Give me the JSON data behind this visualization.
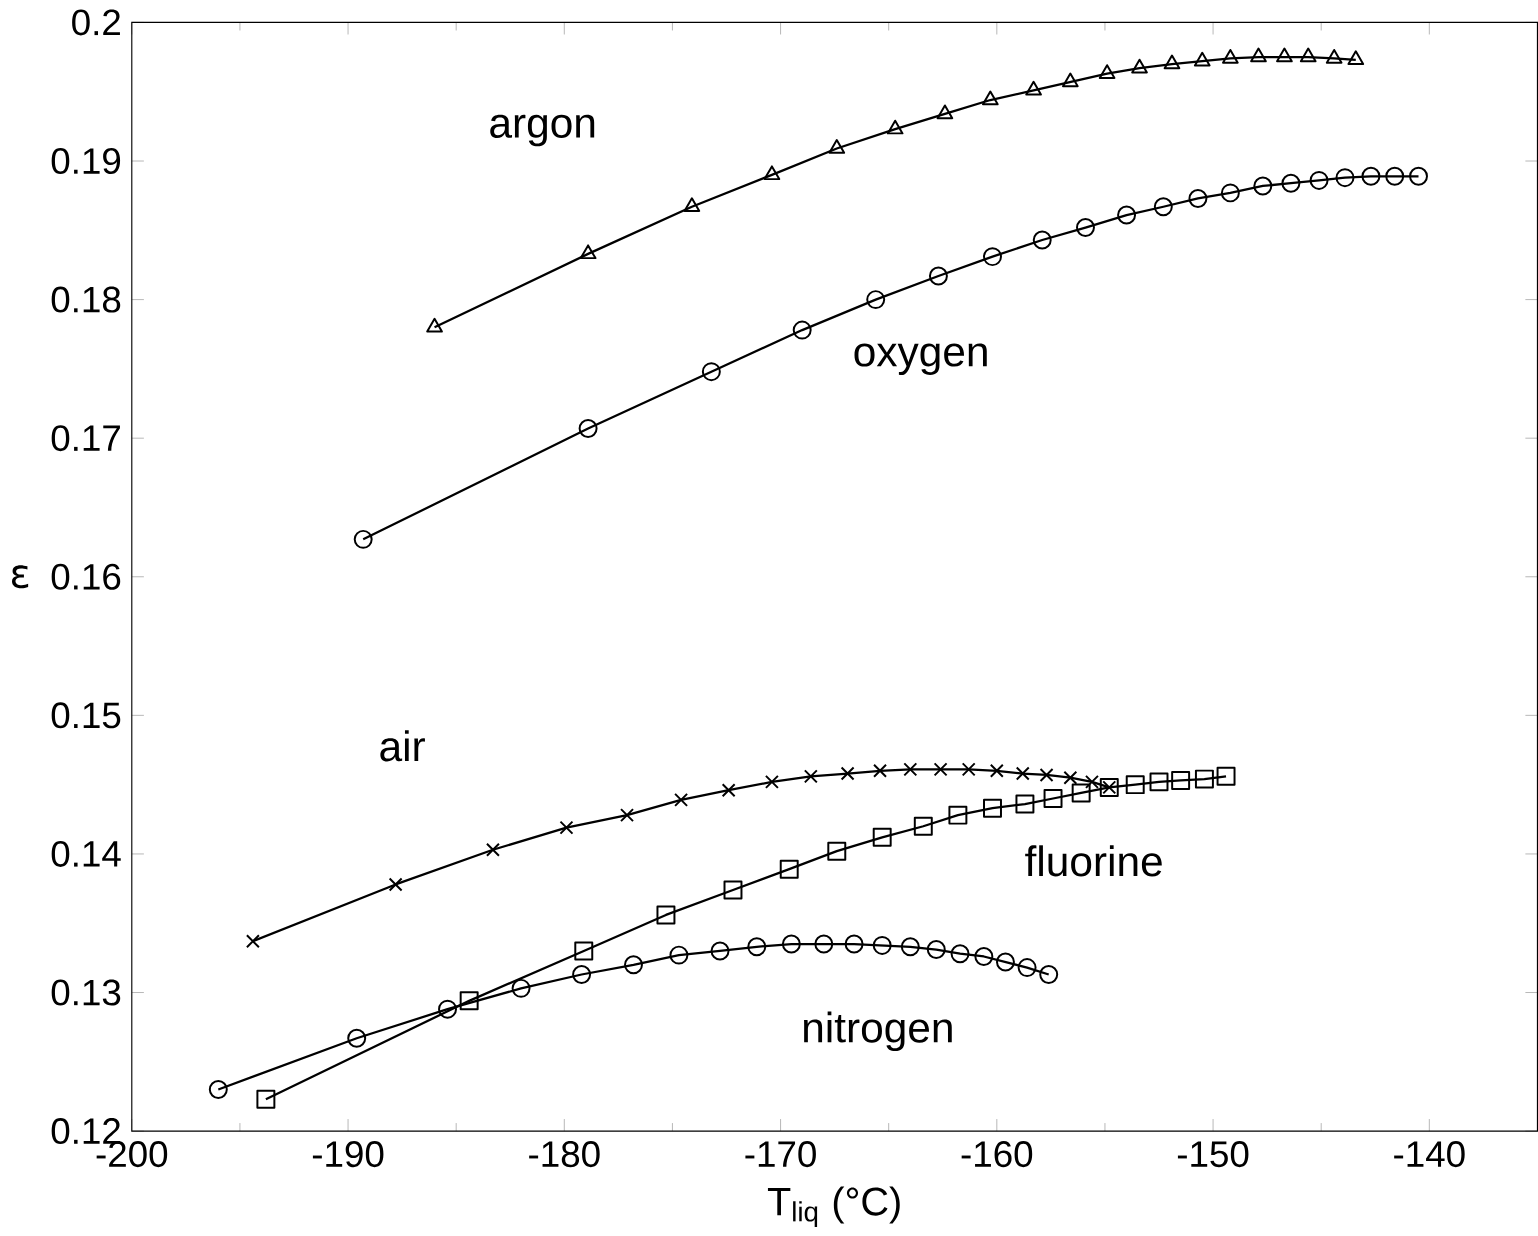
{
  "chart_data": {
    "type": "line",
    "xlabel": "T$_{liq}$ (°C)",
    "ylabel": "ε",
    "xlim": [
      -200,
      -135
    ],
    "ylim": [
      0.12,
      0.2
    ],
    "xticks": [
      -200,
      -190,
      -180,
      -170,
      -160,
      -150,
      -140
    ],
    "yticks": [
      0.12,
      0.13,
      0.14,
      0.15,
      0.16,
      0.17,
      0.18,
      0.19,
      0.2
    ],
    "grid": false,
    "legend": false,
    "series": [
      {
        "name": "argon",
        "color": "#000000",
        "marker": "triangle",
        "x": [
          -186,
          -178.9,
          -174.1,
          -170.4,
          -167.4,
          -164.7,
          -162.4,
          -160.3,
          -158.3,
          -156.6,
          -154.9,
          -153.4,
          -151.9,
          -150.5,
          -149.2,
          -147.9,
          -146.7,
          -145.6,
          -144.4,
          -143.4
        ],
        "values": [
          0.178,
          0.1833,
          0.1867,
          0.189,
          0.1909,
          0.1923,
          0.1934,
          0.1944,
          0.1951,
          0.1957,
          0.1963,
          0.1967,
          0.197,
          0.1972,
          0.1974,
          0.1975,
          0.1975,
          0.1975,
          0.1974,
          0.1973
        ]
      },
      {
        "name": "oxygen",
        "color": "#000000",
        "marker": "circle",
        "x": [
          -189.3,
          -178.9,
          -173.2,
          -169,
          -165.6,
          -162.7,
          -160.2,
          -157.9,
          -155.9,
          -154,
          -152.3,
          -150.7,
          -149.2,
          -147.7,
          -146.4,
          -145.1,
          -143.9,
          -142.7,
          -141.6,
          -140.5
        ],
        "values": [
          0.1627,
          0.1707,
          0.1748,
          0.1778,
          0.18,
          0.1817,
          0.1831,
          0.1843,
          0.1852,
          0.1861,
          0.1867,
          0.1873,
          0.1877,
          0.1882,
          0.1884,
          0.1886,
          0.1888,
          0.1889,
          0.1889,
          0.1889
        ]
      },
      {
        "name": "air",
        "color": "#000000",
        "marker": "cross",
        "x": [
          -194.4,
          -187.8,
          -183.3,
          -179.9,
          -177.1,
          -174.6,
          -172.4,
          -170.4,
          -168.6,
          -166.9,
          -165.4,
          -164,
          -162.6,
          -161.3,
          -160,
          -158.8,
          -157.7,
          -156.6,
          -155.6,
          -154.8
        ],
        "values": [
          0.1337,
          0.1378,
          0.1403,
          0.1419,
          0.1428,
          0.1439,
          0.1446,
          0.1452,
          0.1456,
          0.1458,
          0.146,
          0.1461,
          0.1461,
          0.1461,
          0.146,
          0.1458,
          0.1457,
          0.1455,
          0.1452,
          0.1448
        ]
      },
      {
        "name": "fluorine",
        "color": "#000000",
        "marker": "square",
        "x": [
          -193.8,
          -184.4,
          -179.1,
          -175.3,
          -172.2,
          -169.6,
          -167.4,
          -165.3,
          -163.4,
          -161.8,
          -160.2,
          -158.7,
          -157.4,
          -156.1,
          -154.8,
          -153.6,
          -152.5,
          -151.5,
          -150.4,
          -149.4
        ],
        "values": [
          0.1223,
          0.1294,
          0.133,
          0.1356,
          0.1374,
          0.1389,
          0.1402,
          0.1412,
          0.142,
          0.1428,
          0.1433,
          0.1436,
          0.144,
          0.1444,
          0.1448,
          0.145,
          0.1452,
          0.1453,
          0.1454,
          0.1456
        ]
      },
      {
        "name": "nitrogen",
        "color": "#000000",
        "marker": "circle",
        "x": [
          -196,
          -189.6,
          -185.4,
          -182,
          -179.2,
          -176.8,
          -174.7,
          -172.8,
          -171.1,
          -169.5,
          -168,
          -166.6,
          -165.3,
          -164,
          -162.8,
          -161.7,
          -160.6,
          -159.6,
          -158.6,
          -157.6
        ],
        "values": [
          0.123,
          0.1267,
          0.1288,
          0.1303,
          0.1313,
          0.132,
          0.1327,
          0.133,
          0.1333,
          0.1335,
          0.1335,
          0.1335,
          0.1334,
          0.1333,
          0.1331,
          0.1328,
          0.1326,
          0.1322,
          0.1318,
          0.1313
        ]
      }
    ]
  }
}
